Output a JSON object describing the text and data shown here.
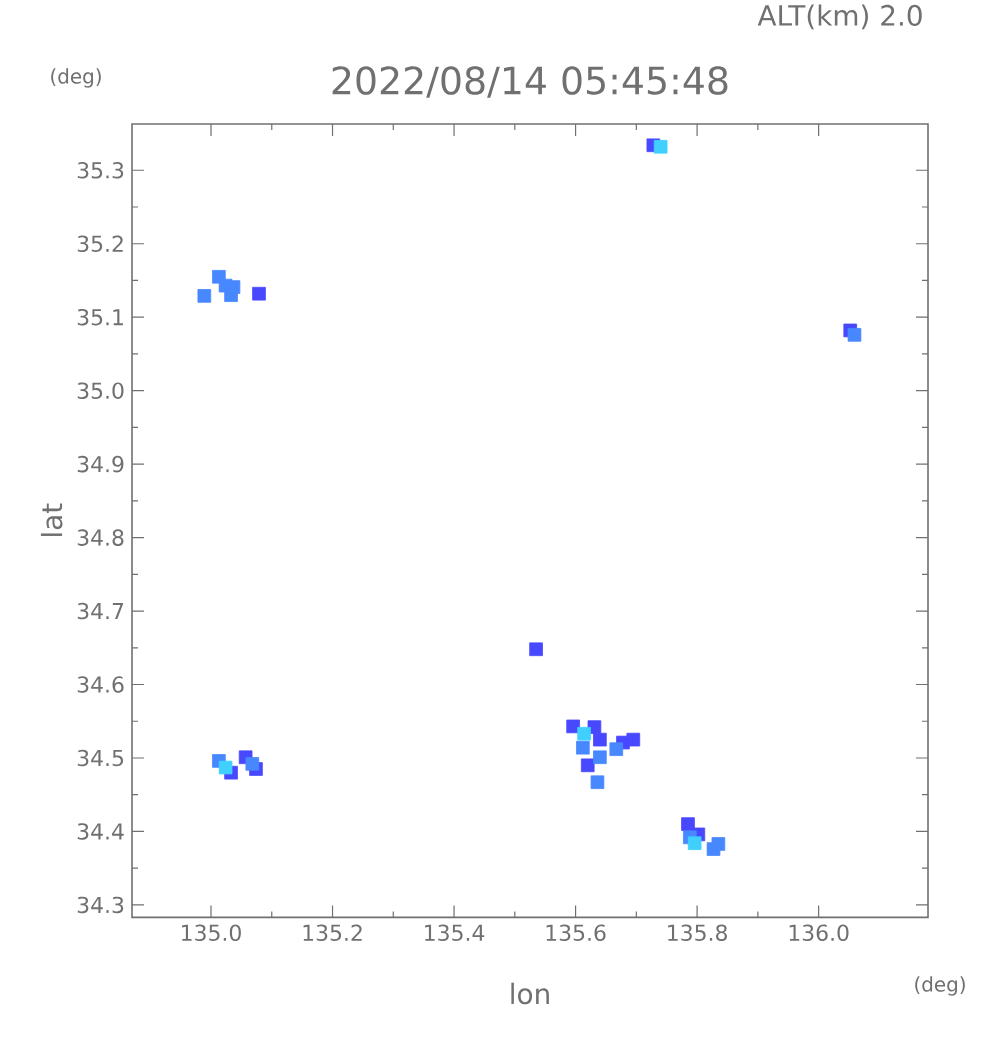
{
  "chart_data": {
    "type": "scatter",
    "title": "2022/08/14 05:45:48",
    "subtitle": "ALT(km) 2.0",
    "xlabel": "lon",
    "ylabel": "lat",
    "annotations": [
      "(deg)",
      "(deg)"
    ],
    "xlim": [
      134.87,
      136.18
    ],
    "ylim": [
      34.283,
      35.363
    ],
    "xticks": [
      {
        "value": 135,
        "label": "135.0"
      },
      135.2,
      135.4,
      135.6,
      135.8,
      {
        "value": 136,
        "label": "136.0"
      }
    ],
    "yticks": [
      34.3,
      34.4,
      34.5,
      34.6,
      34.7,
      34.8,
      34.9,
      {
        "value": 35,
        "label": "35.0"
      },
      35.1,
      35.2,
      35.3
    ],
    "marker": "square",
    "series": [
      {
        "color": "#4848ff",
        "x": [
          135.728,
          135.079,
          136.052,
          135.033,
          135.057,
          135.074,
          135.535,
          135.596,
          135.631,
          135.64,
          135.62,
          135.678,
          135.695,
          135.802,
          135.785
        ],
        "values": [
          35.334,
          35.132,
          35.082,
          34.48,
          34.501,
          34.485,
          34.648,
          34.543,
          34.542,
          34.525,
          34.49,
          34.521,
          34.525,
          34.396,
          34.41
        ]
      },
      {
        "color": "#4888ff",
        "x": [
          134.989,
          135.013,
          135.024,
          135.037,
          135.033,
          136.059,
          135.013,
          135.068,
          135.612,
          135.64,
          135.636,
          135.667,
          135.788,
          135.827,
          135.835
        ],
        "values": [
          35.129,
          35.155,
          35.143,
          35.141,
          35.13,
          35.076,
          34.496,
          34.492,
          34.514,
          34.501,
          34.467,
          34.512,
          34.392,
          34.376,
          34.383
        ]
      },
      {
        "color": "#40d0ff",
        "x": [
          135.74,
          135.024,
          135.614,
          135.796
        ],
        "values": [
          35.332,
          34.487,
          34.533,
          34.384
        ]
      }
    ]
  }
}
